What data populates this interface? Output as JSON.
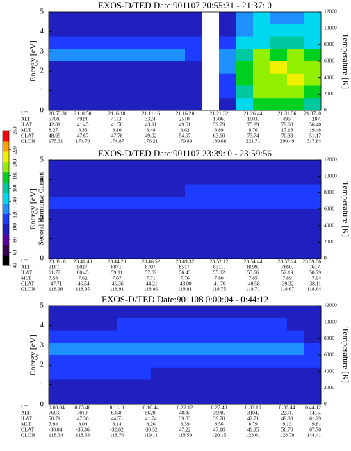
{
  "colorbar": {
    "label": "Second Harmonic Current",
    "lim": [
      40,
      250
    ],
    "ticks": [
      40,
      60,
      80,
      100,
      120,
      140,
      160,
      180,
      200,
      220,
      250
    ],
    "colors": [
      "#000000",
      "#3a0050",
      "#5a00a0",
      "#2020c0",
      "#1e3cff",
      "#1e90ff",
      "#00d8f0",
      "#00c8a0",
      "#00d020",
      "#90f000",
      "#f0f000",
      "#ffa000",
      "#ff0000"
    ]
  },
  "chart_data": [
    {
      "type": "spectrogram",
      "title": "EXOS-D/TED  Date:901107  20:55:31 - 21:37: 0",
      "ylabel": "Energy [eV]",
      "ylim": [
        0,
        5
      ],
      "yticks": [
        0,
        1,
        2,
        3,
        4,
        5
      ],
      "y2label": "Temperature [K]",
      "y2lim": [
        0,
        12000
      ],
      "y2ticks": [
        0,
        2000,
        4000,
        6000,
        8000,
        10000,
        12000
      ],
      "z": [
        [
          95,
          95,
          95,
          95,
          95,
          95,
          95,
          95,
          95,
          null,
          95,
          128,
          145,
          128,
          128,
          145
        ],
        [
          95,
          95,
          95,
          95,
          95,
          95,
          95,
          95,
          95,
          null,
          95,
          128,
          145,
          145,
          145,
          145
        ],
        [
          110,
          110,
          110,
          110,
          110,
          110,
          110,
          110,
          110,
          null,
          110,
          145,
          145,
          160,
          160,
          145
        ],
        [
          128,
          128,
          128,
          128,
          128,
          128,
          128,
          128,
          110,
          null,
          128,
          160,
          190,
          175,
          190,
          175
        ],
        [
          95,
          95,
          95,
          95,
          95,
          95,
          95,
          95,
          95,
          null,
          128,
          175,
          190,
          210,
          190,
          190
        ],
        [
          95,
          95,
          95,
          95,
          95,
          95,
          95,
          95,
          95,
          null,
          110,
          175,
          190,
          190,
          210,
          190
        ],
        [
          95,
          95,
          95,
          95,
          95,
          95,
          95,
          95,
          95,
          null,
          110,
          160,
          190,
          190,
          190,
          175
        ],
        [
          95,
          95,
          95,
          95,
          95,
          95,
          95,
          95,
          95,
          null,
          95,
          145,
          175,
          175,
          175,
          160
        ]
      ],
      "ephemeris": {
        "rows": [
          {
            "label": "UT",
            "cells": [
              "20:55:31",
              "21: 0:58",
              "21: 6:18",
              "21:11:16",
              "21:16:20",
              "21:21:32",
              "21:26:44",
              "21:31:56",
              "21:37: 0"
            ]
          },
          {
            "label": "ALT",
            "cells": [
              "5700.",
              "4924.",
              "4113.",
              "3324.",
              "2510.",
              "1706.",
              "1003.",
              "496.",
              "287."
            ]
          },
          {
            "label": "ILAT",
            "cells": [
              "42.81",
              "41.45",
              "41.58",
              "43.91",
              "49.51",
              "59.79",
              "75.29",
              "79.63",
              "56.40"
            ]
          },
          {
            "label": "MLT",
            "cells": [
              "8.27",
              "8.33",
              "8.40",
              "8.48",
              "8.62",
              "8.89",
              "9.76",
              "17.18",
              "19.48"
            ]
          },
          {
            "label": "GLAT",
            "cells": [
              "48.95",
              "47.67",
              "47.78",
              "49.92",
              "54.97",
              "63.60",
              "73.74",
              "70.33",
              "51.17"
            ]
          },
          {
            "label": "GLON",
            "cells": [
              "175.31",
              "174.70",
              "174.87",
              "176.21",
              "179.89",
              "189.66",
              "221.71",
              "290.49",
              "317.84"
            ]
          }
        ]
      }
    },
    {
      "type": "spectrogram",
      "title": "EXOS-D/TED  Date:901107  23:39: 0 - 23:59:56",
      "ylabel": "Energy [eV]",
      "ylim": [
        0,
        5
      ],
      "yticks": [
        0,
        1,
        2,
        3,
        4,
        5
      ],
      "y2label": "Temperature [K]",
      "y2lim": [
        0,
        12000
      ],
      "y2ticks": [
        0,
        2000,
        4000,
        6000,
        8000,
        10000,
        12000
      ],
      "z": [
        [
          95,
          95,
          95,
          95,
          95,
          95,
          95,
          95,
          95,
          95,
          95,
          95,
          95,
          95,
          95,
          95
        ],
        [
          95,
          95,
          95,
          95,
          95,
          95,
          95,
          95,
          95,
          95,
          95,
          95,
          95,
          95,
          95,
          95
        ],
        [
          95,
          95,
          95,
          95,
          95,
          95,
          95,
          95,
          110,
          110,
          110,
          110,
          110,
          110,
          110,
          110
        ],
        [
          110,
          110,
          110,
          110,
          110,
          110,
          110,
          110,
          110,
          110,
          110,
          110,
          110,
          110,
          110,
          110
        ],
        [
          95,
          95,
          95,
          95,
          95,
          95,
          95,
          95,
          95,
          95,
          95,
          95,
          95,
          95,
          95,
          95
        ],
        [
          95,
          95,
          95,
          95,
          95,
          95,
          95,
          95,
          95,
          95,
          95,
          95,
          95,
          95,
          95,
          95
        ],
        [
          95,
          95,
          95,
          95,
          95,
          95,
          95,
          95,
          95,
          95,
          95,
          95,
          95,
          95,
          95,
          95
        ],
        [
          95,
          95,
          95,
          95,
          95,
          95,
          95,
          95,
          95,
          95,
          95,
          95,
          95,
          95,
          95,
          95
        ]
      ],
      "ephemeris": {
        "rows": [
          {
            "label": "UT",
            "cells": [
              "23:39: 0",
              "23:41:40",
              "23:44:20",
              "23:46:52",
              "23:49:32",
              "23:52:12",
              "23:54:44",
              "23:57:24",
              "23:59:56"
            ]
          },
          {
            "label": "ALT",
            "cells": [
              "9167.",
              "9027.",
              "8871.",
              "8707.",
              "8517.",
              "8311.",
              "8099.",
              "7860.",
              "7617."
            ]
          },
          {
            "label": "ILAT",
            "cells": [
              "61.77",
              "60.45",
              "59.11",
              "57.82",
              "56.43",
              "55.02",
              "53.66",
              "52.19",
              "50.79"
            ]
          },
          {
            "label": "MLT",
            "cells": [
              "7.58",
              "7.62",
              "7.67",
              "7.71",
              "7.76",
              "7.80",
              "7.85",
              "7.89",
              "7.94"
            ]
          },
          {
            "label": "GLAT",
            "cells": [
              "-47.71",
              "-46.54",
              "-45.36",
              "-44.21",
              "-43.00",
              "-41.76",
              "-40.58",
              "-39.32",
              "-38.11"
            ]
          },
          {
            "label": "GLON",
            "cells": [
              "118.98",
              "118.95",
              "118.91",
              "118.86",
              "118.81",
              "118.75",
              "118.71",
              "118.67",
              "118.64"
            ]
          }
        ]
      }
    },
    {
      "type": "spectrogram",
      "title": "EXOS-D/TED  Date:901108  0:00:04 - 0:44:12",
      "ylabel": "Energy [eV]",
      "ylim": [
        0,
        5
      ],
      "yticks": [
        0,
        1,
        2,
        3,
        4,
        5
      ],
      "y2label": "Temperature [K]",
      "y2lim": [
        0,
        12000
      ],
      "y2ticks": [
        0,
        2000,
        4000,
        6000,
        8000,
        10000,
        12000
      ],
      "z": [
        [
          95,
          95,
          95,
          95,
          95,
          95,
          95,
          95,
          95,
          95,
          95,
          95,
          95,
          95,
          95,
          95
        ],
        [
          95,
          95,
          95,
          95,
          110,
          110,
          110,
          110,
          110,
          110,
          110,
          110,
          110,
          110,
          95,
          95
        ],
        [
          110,
          110,
          110,
          110,
          110,
          110,
          110,
          110,
          110,
          110,
          110,
          110,
          110,
          110,
          110,
          95
        ],
        [
          128,
          128,
          128,
          128,
          128,
          128,
          128,
          128,
          128,
          128,
          128,
          128,
          128,
          128,
          128,
          110
        ],
        [
          110,
          110,
          110,
          110,
          110,
          110,
          110,
          110,
          110,
          110,
          110,
          110,
          110,
          110,
          110,
          110
        ],
        [
          110,
          110,
          110,
          110,
          110,
          110,
          95,
          95,
          95,
          95,
          95,
          95,
          95,
          95,
          95,
          95
        ],
        [
          95,
          95,
          95,
          95,
          95,
          95,
          95,
          95,
          95,
          95,
          95,
          95,
          95,
          95,
          95,
          95
        ],
        [
          95,
          95,
          95,
          95,
          95,
          95,
          95,
          95,
          95,
          95,
          95,
          95,
          95,
          95,
          95,
          95
        ]
      ],
      "ephemeris": {
        "rows": [
          {
            "label": "UT",
            "cells": [
              "0:00:04",
              "0:05:40",
              "0:11: 8",
              "0:16:44",
              "0:22:12",
              "0:27:40",
              "0:33:16",
              "0:38:44",
              "0:44:12"
            ]
          },
          {
            "label": "ALT",
            "cells": [
              "7603.",
              "7010.",
              "6358.",
              "5620.",
              "4836.",
              "3998.",
              "3104.",
              "2231.",
              "1415."
            ]
          },
          {
            "label": "ILAT",
            "cells": [
              "50.71",
              "47.56",
              "44.53",
              "41.74",
              "39.83",
              "39.70",
              "42.71",
              "49.88",
              "61.29"
            ]
          },
          {
            "label": "MLT",
            "cells": [
              "7.94",
              "8.04",
              "8.14",
              "8.26",
              "8.39",
              "8.56",
              "8.79",
              "9.13",
              "9.81"
            ]
          },
          {
            "label": "GLAT",
            "cells": [
              "-38.04",
              "-35.36",
              "-32.82",
              "-30.52",
              "47.22",
              "47.16",
              "49.95",
              "56.70",
              "67.70"
            ]
          },
          {
            "label": "GLON",
            "cells": [
              "118.64",
              "118.63",
              "118.76",
              "119.11",
              "118.59",
              "120.15",
              "123.01",
              "128.78",
              "144.41"
            ]
          }
        ]
      }
    }
  ]
}
